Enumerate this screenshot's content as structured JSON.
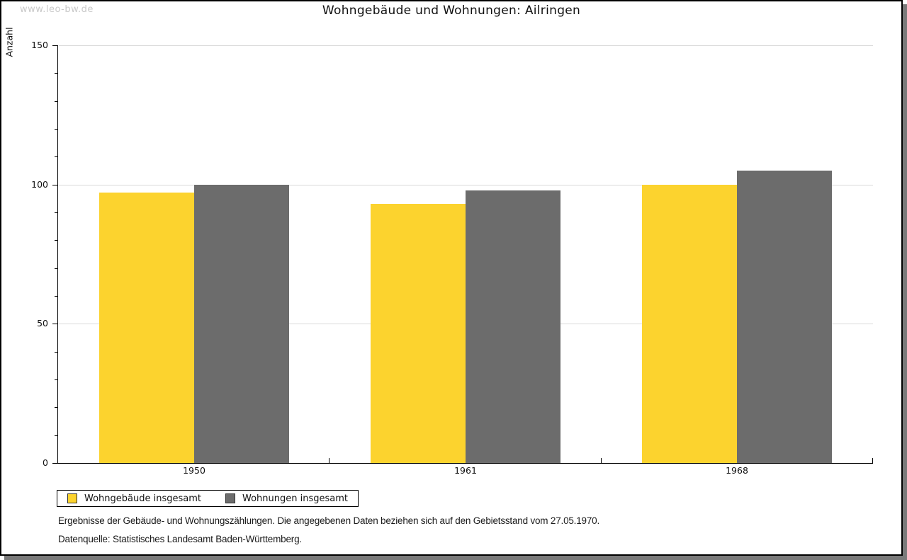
{
  "watermark": "www.leo-bw.de",
  "title": "Wohngebäude und Wohnungen: Ailringen",
  "colors": {
    "series1": "#fcd32e",
    "series2": "#6c6c6c",
    "grid": "#d9d9d9",
    "axis": "#000000",
    "watermark": "#c9c9c9",
    "panel_shadow": "#7a7a7a"
  },
  "chart_data": {
    "type": "bar",
    "title": "Wohngebäude und Wohnungen: Ailringen",
    "categories": [
      "1950",
      "1961",
      "1968"
    ],
    "series": [
      {
        "name": "Wohngebäude insgesamt",
        "color": "#fcd32e",
        "values": [
          97,
          93,
          100
        ]
      },
      {
        "name": "Wohnungen insgesamt",
        "color": "#6c6c6c",
        "values": [
          100,
          98,
          105
        ]
      }
    ],
    "xlabel": "",
    "ylabel": "Anzahl",
    "ylim": [
      0,
      150
    ],
    "yticks_major": [
      0,
      50,
      100,
      150
    ],
    "ytick_minor_step": 10,
    "grid": true,
    "legend_position": "bottom-left"
  },
  "footnotes": [
    "Ergebnisse der Gebäude- und Wohnungszählungen. Die angegebenen Daten beziehen sich auf den Gebietsstand vom 27.05.1970.",
    "Datenquelle: Statistisches Landesamt Baden-Württemberg."
  ]
}
